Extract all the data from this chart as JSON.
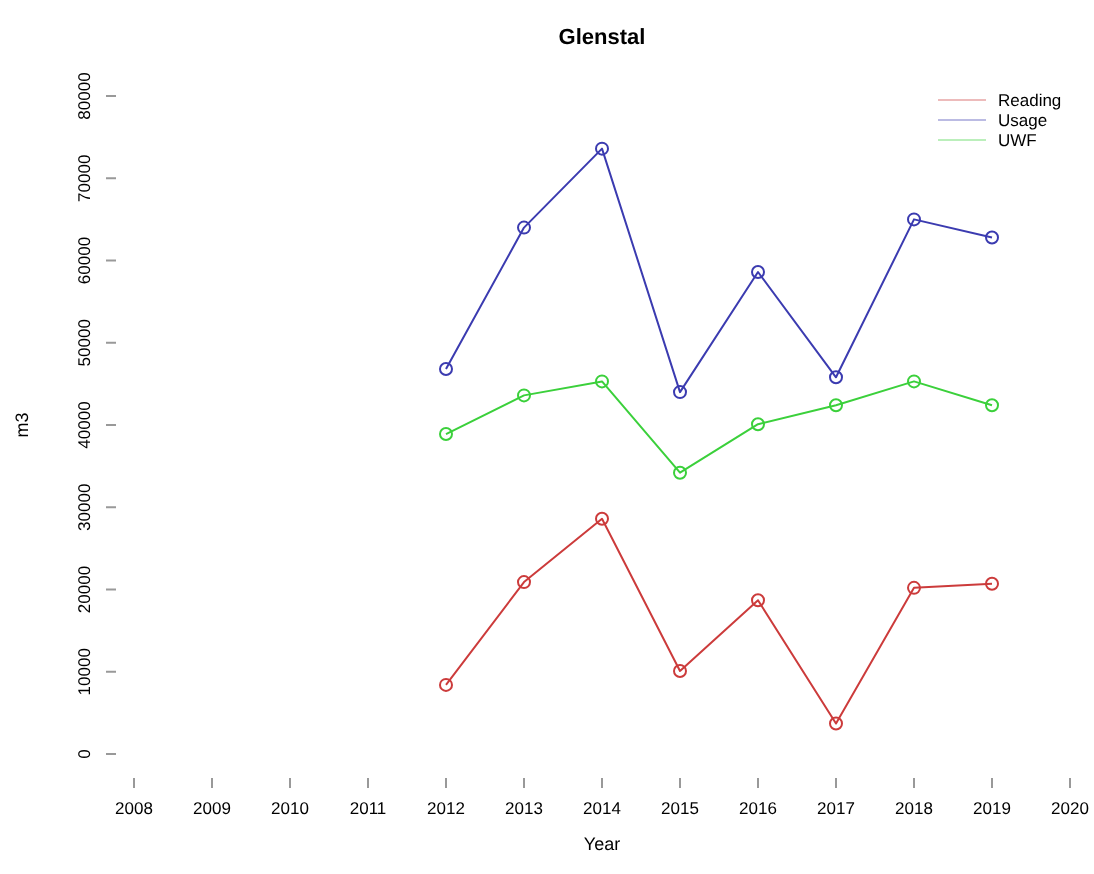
{
  "chart_data": {
    "type": "line",
    "title": "Glenstal",
    "xlabel": "Year",
    "ylabel": "m3",
    "x": [
      2012,
      2013,
      2014,
      2015,
      2016,
      2017,
      2018,
      2019
    ],
    "series": [
      {
        "name": "Reading",
        "color": "#cc3b3b",
        "values": [
          8400,
          20900,
          28600,
          10100,
          18700,
          3700,
          20200,
          20700
        ]
      },
      {
        "name": "Usage",
        "color": "#3b3bb0",
        "values": [
          46800,
          64000,
          73600,
          44000,
          58600,
          45800,
          65000,
          62800
        ]
      },
      {
        "name": "UWF",
        "color": "#3bd03b",
        "values": [
          38900,
          43600,
          45300,
          34200,
          40100,
          42400,
          45300,
          42400
        ]
      }
    ],
    "xlim": [
      2008,
      2020
    ],
    "xticks": [
      2008,
      2009,
      2010,
      2011,
      2012,
      2013,
      2014,
      2015,
      2016,
      2017,
      2018,
      2019,
      2020
    ],
    "ylim": [
      0,
      80000
    ],
    "yticks": [
      0,
      10000,
      20000,
      30000,
      40000,
      50000,
      60000,
      70000,
      80000
    ],
    "grid": false,
    "legend": "top right",
    "marker": "circle",
    "line_style": "solid"
  }
}
